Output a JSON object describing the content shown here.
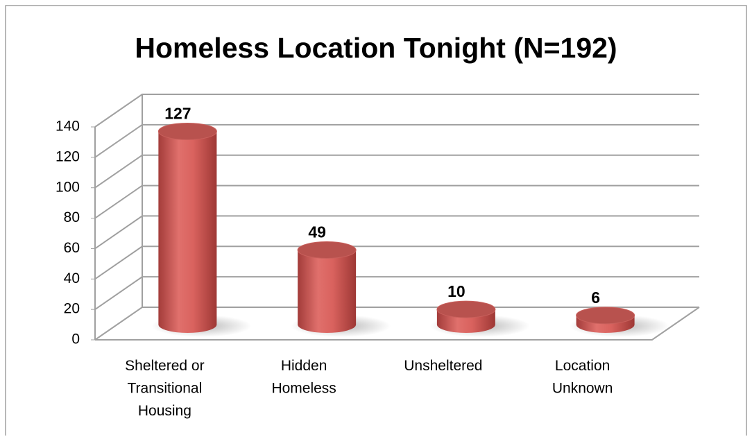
{
  "chart_data": {
    "type": "bar",
    "title": "Homeless Location Tonight (N=192)",
    "categories": [
      "Sheltered or Transitional Housing",
      "Hidden Homeless",
      "Unsheltered",
      "Location Unknown"
    ],
    "values": [
      127,
      49,
      10,
      6
    ],
    "color": "#c0504d",
    "ylim": [
      0,
      140
    ],
    "yticks": [
      0,
      20,
      40,
      60,
      80,
      100,
      120,
      140
    ],
    "grid": true
  }
}
